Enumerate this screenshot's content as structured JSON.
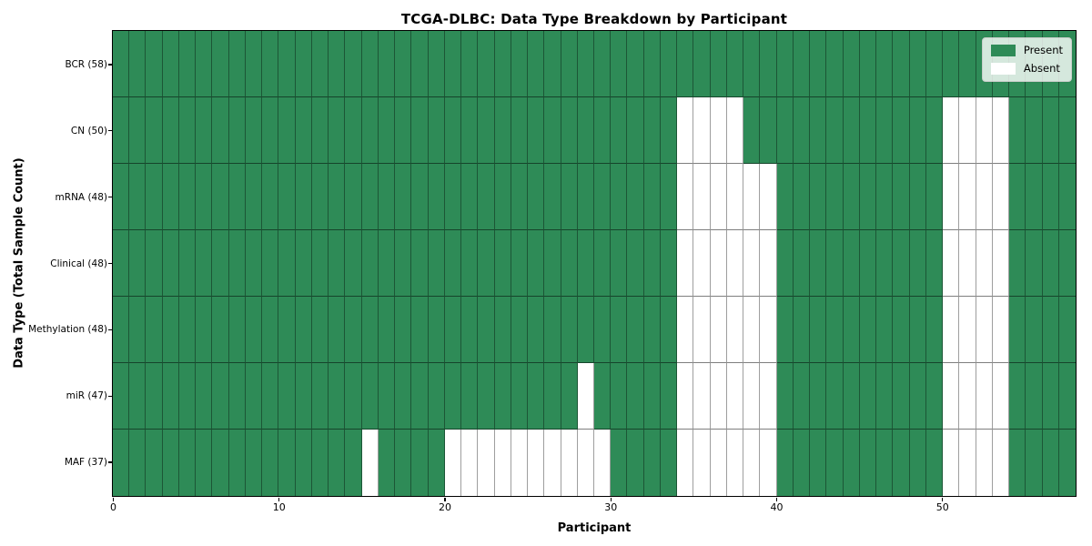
{
  "chart_data": {
    "type": "heatmap",
    "title": "TCGA-DLBC: Data Type Breakdown by Participant",
    "xlabel": "Participant",
    "ylabel": "Data Type (Total Sample Count)",
    "x_ticks": [
      0,
      10,
      20,
      30,
      40,
      50
    ],
    "x_range": [
      0,
      58
    ],
    "n_participants": 58,
    "grid_rows": 7,
    "grid_on": true,
    "legend_position": "upper right",
    "colors": {
      "present": "#2e8b57",
      "absent": "#ffffff",
      "cell_edge": "rgba(0,0,0,0.4)",
      "axis_border": "#000000",
      "background": "#ffffff"
    },
    "legend": [
      {
        "label": "Present",
        "color": "#2e8b57"
      },
      {
        "label": "Absent",
        "color": "#ffffff"
      }
    ],
    "rows": [
      {
        "label": "BCR (58)",
        "total": 58,
        "absent_participants": []
      },
      {
        "label": "CN (50)",
        "total": 50,
        "absent_participants": [
          34,
          35,
          36,
          37,
          50,
          51,
          52,
          53
        ]
      },
      {
        "label": "mRNA (48)",
        "total": 48,
        "absent_participants": [
          34,
          35,
          36,
          37,
          38,
          39,
          50,
          51,
          52,
          53
        ]
      },
      {
        "label": "Clinical (48)",
        "total": 48,
        "absent_participants": [
          34,
          35,
          36,
          37,
          38,
          39,
          50,
          51,
          52,
          53
        ]
      },
      {
        "label": "Methylation (48)",
        "total": 48,
        "absent_participants": [
          34,
          35,
          36,
          37,
          38,
          39,
          50,
          51,
          52,
          53
        ]
      },
      {
        "label": "miR (47)",
        "total": 47,
        "absent_participants": [
          28,
          34,
          35,
          36,
          37,
          38,
          39,
          50,
          51,
          52,
          53
        ]
      },
      {
        "label": "MAF (37)",
        "total": 37,
        "absent_participants": [
          15,
          20,
          21,
          22,
          23,
          24,
          25,
          26,
          27,
          28,
          29,
          34,
          35,
          36,
          37,
          38,
          39,
          50,
          51,
          52,
          53
        ]
      }
    ]
  }
}
